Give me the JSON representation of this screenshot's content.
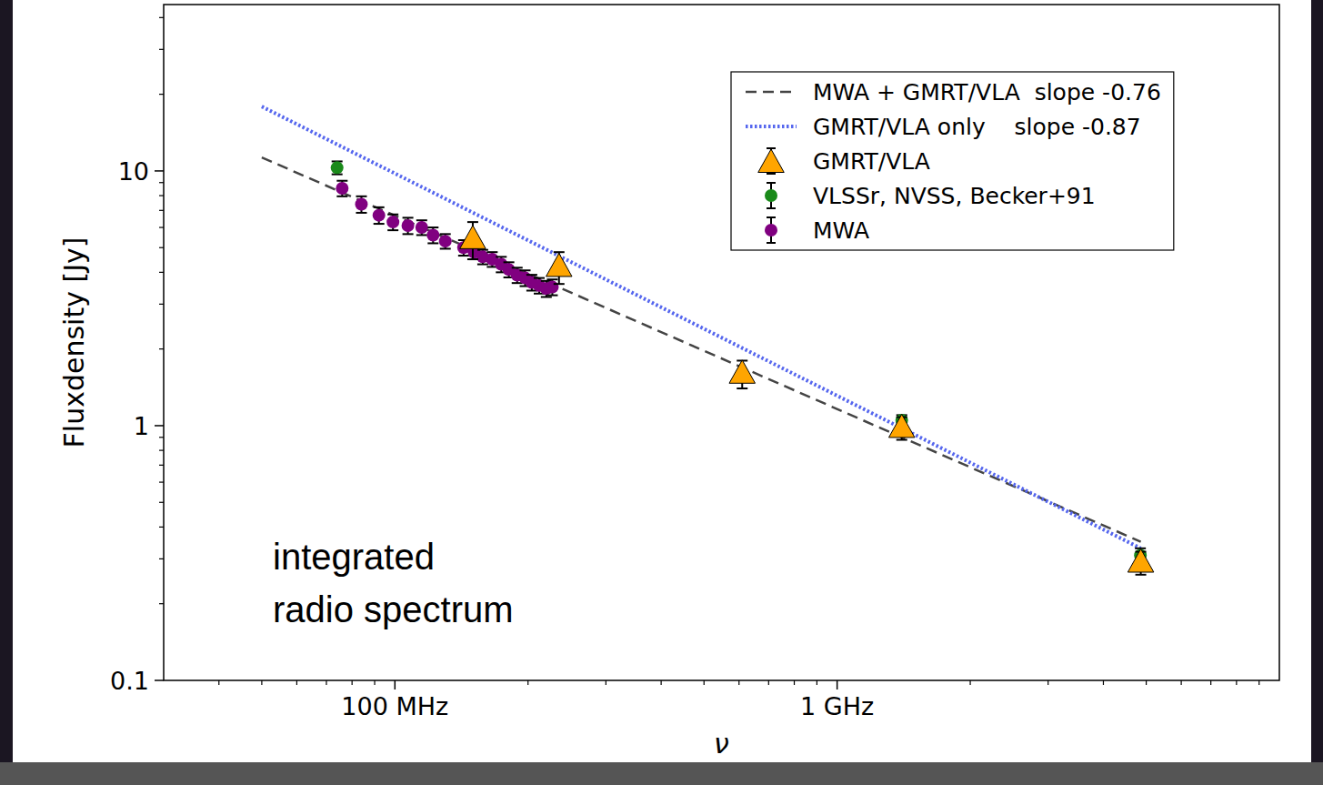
{
  "chart_data": {
    "type": "scatter",
    "log": true,
    "grid": false,
    "legend": "upper right",
    "x_label": "ν",
    "y_label": "Fluxdensity [Jy]",
    "annotation": [
      "integrated",
      "radio spectrum"
    ],
    "xlim": [
      30,
      10000
    ],
    "ylim": [
      0.1,
      45
    ],
    "xticks": [
      {
        "value": 100,
        "label": "100 MHz"
      },
      {
        "value": 1000,
        "label": "1 GHz"
      }
    ],
    "yticks": [
      0.1,
      1,
      10
    ],
    "series": [
      {
        "name": "MWA + GMRT/VLA  slope -0.76",
        "type": "line",
        "line_style": "dashed",
        "color": "#444444",
        "x": [
          50,
          4860
        ],
        "values": [
          11.3,
          0.35
        ]
      },
      {
        "name": "GMRT/VLA only    slope -0.87",
        "type": "line",
        "line_style": "dotted",
        "color": "#5566ee",
        "x": [
          50,
          4860
        ],
        "values": [
          17.9,
          0.33
        ]
      },
      {
        "name": "GMRT/VLA",
        "type": "scatter",
        "marker": "triangle",
        "color": "#ffa500",
        "x": [
          150,
          235,
          610,
          1400,
          4860
        ],
        "values": [
          5.4,
          4.2,
          1.6,
          0.98,
          0.29
        ],
        "errors": [
          0.9,
          0.6,
          0.2,
          0.1,
          0.03
        ]
      },
      {
        "name": "VLSSr, NVSS, Becker+91",
        "type": "scatter",
        "marker": "circle",
        "color": "#1a8a1a",
        "x": [
          74,
          1400,
          4850
        ],
        "values": [
          10.3,
          1.05,
          0.31
        ],
        "errors": [
          0.6,
          0.05,
          0.02
        ]
      },
      {
        "name": "MWA",
        "type": "scatter",
        "marker": "circle",
        "color": "#800080",
        "x": [
          76,
          84,
          92,
          99,
          107,
          115,
          122,
          130,
          143,
          151,
          158,
          166,
          174,
          181,
          189,
          197,
          204,
          212,
          220,
          227
        ],
        "values": [
          8.55,
          7.4,
          6.7,
          6.3,
          6.1,
          6.0,
          5.6,
          5.3,
          5.0,
          4.8,
          4.6,
          4.5,
          4.3,
          4.1,
          3.9,
          3.8,
          3.65,
          3.55,
          3.45,
          3.5
        ],
        "errors": [
          0.6,
          0.55,
          0.5,
          0.45,
          0.45,
          0.4,
          0.4,
          0.35,
          0.35,
          0.3,
          0.3,
          0.3,
          0.3,
          0.28,
          0.27,
          0.27,
          0.26,
          0.25,
          0.25,
          0.25
        ]
      }
    ]
  }
}
